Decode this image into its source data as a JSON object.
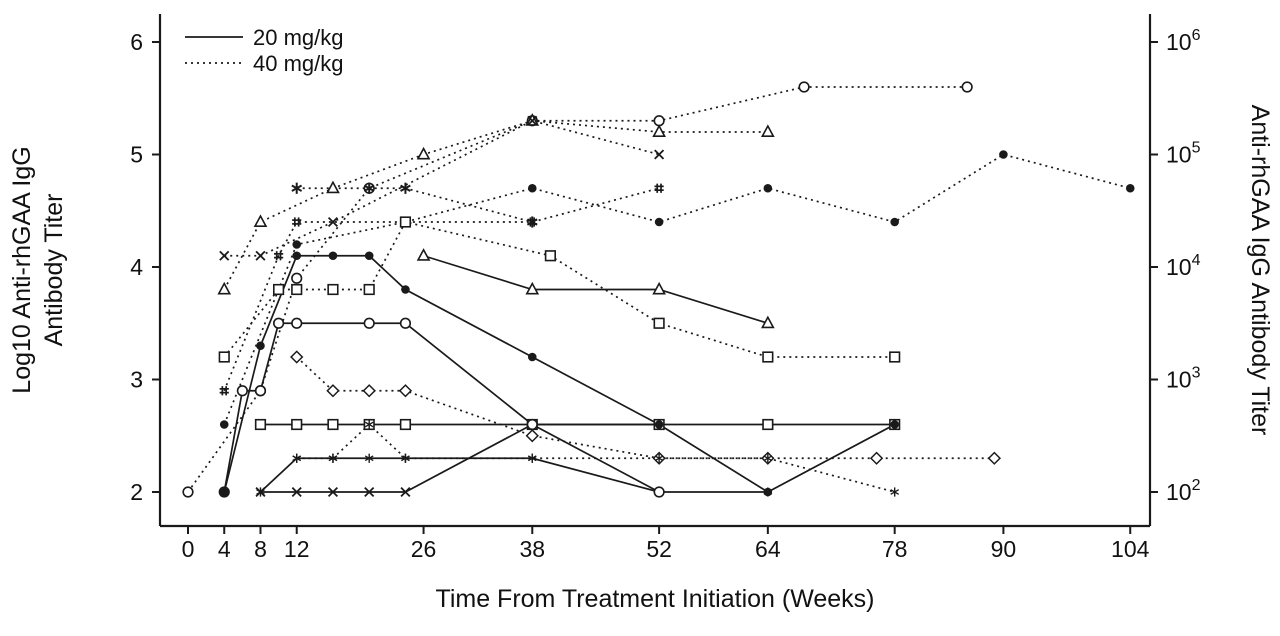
{
  "colors": {
    "ink": "#1a1a1a",
    "background": "#ffffff"
  },
  "legend": {
    "items": [
      {
        "label": "20 mg/kg",
        "style": "solid"
      },
      {
        "label": "40 mg/kg",
        "style": "dotted"
      }
    ]
  },
  "axis_titles": {
    "left_line1": "Log10 Anti-rhGAA IgG",
    "left_line2": "Antibody Titer",
    "right": "Anti-rhGAA IgG Antibody Titer",
    "bottom": "Time From Treatment Initiation (Weeks)"
  },
  "chart_data": {
    "type": "line",
    "title": "",
    "xlabel": "Time From Treatment Initiation (Weeks)",
    "ylabel": "Log10 Anti-rhGAA IgG Antibody Titer",
    "ylabel_right": "Anti-rhGAA IgG Antibody Titer",
    "x_ticks": [
      0,
      4,
      8,
      12,
      26,
      38,
      52,
      64,
      78,
      90,
      104
    ],
    "y_ticks_left": [
      2,
      3,
      4,
      5,
      6
    ],
    "y_ticks_right": [
      {
        "base": "10",
        "exp": "2"
      },
      {
        "base": "10",
        "exp": "3"
      },
      {
        "base": "10",
        "exp": "4"
      },
      {
        "base": "10",
        "exp": "5"
      },
      {
        "base": "10",
        "exp": "6"
      }
    ],
    "xlim": [
      -3,
      112
    ],
    "ylim": [
      1.7,
      6.2
    ],
    "grid": false,
    "legend_position": "top-left",
    "groups": {
      "solid": "20 mg/kg",
      "dotted": "40 mg/kg"
    },
    "series": [
      {
        "name": "patient-x-20",
        "group": "20 mg/kg",
        "line": "solid",
        "marker": "x",
        "points": [
          [
            8,
            2.0
          ],
          [
            12,
            2.0
          ],
          [
            16,
            2.0
          ],
          [
            20,
            2.0
          ],
          [
            24,
            2.0
          ],
          [
            38,
            2.6
          ],
          [
            52,
            2.6
          ]
        ]
      },
      {
        "name": "patient-square-20",
        "group": "20 mg/kg",
        "line": "solid",
        "marker": "square-open",
        "points": [
          [
            8,
            2.6
          ],
          [
            12,
            2.6
          ],
          [
            16,
            2.6
          ],
          [
            20,
            2.6
          ],
          [
            24,
            2.6
          ],
          [
            38,
            2.6
          ],
          [
            52,
            2.6
          ],
          [
            64,
            2.6
          ],
          [
            78,
            2.6
          ]
        ]
      },
      {
        "name": "patient-asterisk-20",
        "group": "20 mg/kg",
        "line": "solid",
        "marker": "asterisk6",
        "points": [
          [
            8,
            2.0
          ],
          [
            12,
            2.3
          ],
          [
            16,
            2.3
          ],
          [
            20,
            2.3
          ],
          [
            24,
            2.3
          ],
          [
            38,
            2.3
          ],
          [
            52,
            2.0
          ],
          [
            64,
            2.0
          ]
        ]
      },
      {
        "name": "patient-circle-20",
        "group": "20 mg/kg",
        "line": "solid",
        "marker": "circle-open",
        "points": [
          [
            4,
            2.0
          ],
          [
            6,
            2.9
          ],
          [
            8,
            2.9
          ],
          [
            10,
            3.5
          ],
          [
            12,
            3.5
          ],
          [
            20,
            3.5
          ],
          [
            24,
            3.5
          ],
          [
            38,
            2.6
          ],
          [
            52,
            2.0
          ]
        ]
      },
      {
        "name": "patient-dot-20",
        "group": "20 mg/kg",
        "line": "solid",
        "marker": "circle-filled",
        "points": [
          [
            4,
            2.0
          ],
          [
            8,
            3.3
          ],
          [
            12,
            4.1
          ],
          [
            16,
            4.1
          ],
          [
            20,
            4.1
          ],
          [
            24,
            3.8
          ],
          [
            38,
            3.2
          ],
          [
            52,
            2.6
          ],
          [
            64,
            2.0
          ],
          [
            78,
            2.6
          ]
        ]
      },
      {
        "name": "patient-triangle-20",
        "group": "20 mg/kg",
        "line": "solid",
        "marker": "triangle-open",
        "points": [
          [
            26,
            4.1
          ],
          [
            38,
            3.8
          ],
          [
            52,
            3.8
          ],
          [
            64,
            3.5
          ]
        ]
      },
      {
        "name": "patient-circle-40",
        "group": "40 mg/kg",
        "line": "dotted",
        "marker": "circle-open",
        "points": [
          [
            0,
            2.0
          ],
          [
            8,
            2.9
          ],
          [
            12,
            3.9
          ],
          [
            20,
            4.7
          ],
          [
            38,
            5.3
          ],
          [
            52,
            5.3
          ],
          [
            68,
            5.6
          ],
          [
            86,
            5.6
          ]
        ]
      },
      {
        "name": "patient-triangle-40",
        "group": "40 mg/kg",
        "line": "dotted",
        "marker": "triangle-open",
        "points": [
          [
            4,
            3.8
          ],
          [
            8,
            4.4
          ],
          [
            16,
            4.7
          ],
          [
            26,
            5.0
          ],
          [
            38,
            5.3
          ],
          [
            52,
            5.2
          ],
          [
            64,
            5.2
          ]
        ]
      },
      {
        "name": "patient-x-40",
        "group": "40 mg/kg",
        "line": "dotted",
        "marker": "x",
        "points": [
          [
            4,
            4.1
          ],
          [
            8,
            4.1
          ],
          [
            16,
            4.4
          ],
          [
            38,
            5.3
          ],
          [
            52,
            5.0
          ]
        ]
      },
      {
        "name": "patient-star-40",
        "group": "40 mg/kg",
        "line": "dotted",
        "marker": "star6",
        "points": [
          [
            12,
            4.7
          ],
          [
            20,
            4.7
          ],
          [
            24,
            4.7
          ],
          [
            38,
            4.4
          ]
        ]
      },
      {
        "name": "patient-hash-40",
        "group": "40 mg/kg",
        "line": "dotted",
        "marker": "hash",
        "points": [
          [
            4,
            2.9
          ],
          [
            10,
            4.1
          ],
          [
            12,
            4.4
          ],
          [
            24,
            4.4
          ],
          [
            38,
            4.4
          ],
          [
            52,
            4.7
          ]
        ]
      },
      {
        "name": "patient-dot-40",
        "group": "40 mg/kg",
        "line": "dotted",
        "marker": "circle-filled",
        "points": [
          [
            4,
            2.6
          ],
          [
            12,
            4.2
          ],
          [
            24,
            4.4
          ],
          [
            38,
            4.7
          ],
          [
            52,
            4.4
          ],
          [
            64,
            4.7
          ],
          [
            78,
            4.4
          ],
          [
            90,
            5.0
          ],
          [
            104,
            4.7
          ]
        ]
      },
      {
        "name": "patient-square-40",
        "group": "40 mg/kg",
        "line": "dotted",
        "marker": "square-open",
        "points": [
          [
            4,
            3.2
          ],
          [
            10,
            3.8
          ],
          [
            12,
            3.8
          ],
          [
            16,
            3.8
          ],
          [
            20,
            3.8
          ],
          [
            24,
            4.4
          ],
          [
            40,
            4.1
          ],
          [
            52,
            3.5
          ],
          [
            64,
            3.2
          ],
          [
            78,
            3.2
          ]
        ]
      },
      {
        "name": "patient-diamond-40",
        "group": "40 mg/kg",
        "line": "dotted",
        "marker": "diamond-open",
        "points": [
          [
            12,
            3.2
          ],
          [
            16,
            2.9
          ],
          [
            20,
            2.9
          ],
          [
            24,
            2.9
          ],
          [
            38,
            2.5
          ],
          [
            52,
            2.3
          ],
          [
            64,
            2.3
          ],
          [
            76,
            2.3
          ],
          [
            89,
            2.3
          ]
        ]
      },
      {
        "name": "patient-asterisk-40",
        "group": "40 mg/kg",
        "line": "dotted",
        "marker": "asterisk6",
        "points": [
          [
            12,
            2.3
          ],
          [
            16,
            2.3
          ],
          [
            20,
            2.6
          ],
          [
            24,
            2.3
          ],
          [
            38,
            2.3
          ],
          [
            52,
            2.3
          ],
          [
            64,
            2.3
          ],
          [
            78,
            2.0
          ]
        ]
      }
    ]
  }
}
